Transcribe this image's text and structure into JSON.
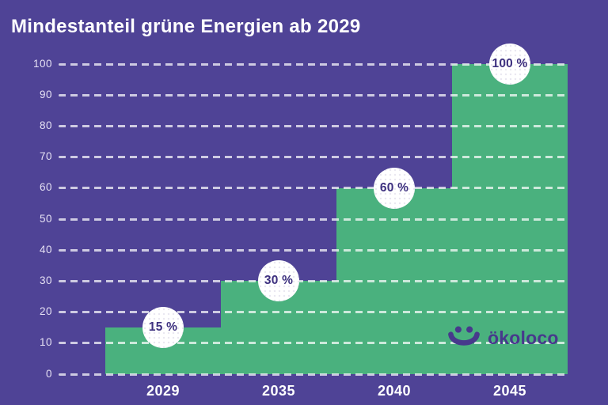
{
  "header": {
    "title": "Mindestanteil grüne Energien ab 2029"
  },
  "chart_data": {
    "type": "bar",
    "title": "Mindestanteil grüne Energien ab 2029",
    "categories": [
      "2029",
      "2035",
      "2040",
      "2045"
    ],
    "values": [
      15,
      30,
      60,
      100
    ],
    "value_labels": [
      "15 %",
      "30 %",
      "60 %",
      "100 %"
    ],
    "xlabel": "",
    "ylabel": "",
    "ylim": [
      0,
      100
    ],
    "yticks": [
      0,
      10,
      20,
      30,
      40,
      50,
      60,
      70,
      80,
      90,
      100
    ],
    "grid": "horizontal-dashed",
    "legend": "none",
    "style": "contiguous step bars with circular value badges centered on each bar top edge"
  },
  "logo": {
    "text": "ökoloco",
    "icon": "smiley-face-icon"
  },
  "colors": {
    "background": "#4f4396",
    "bar": "#4ab17e",
    "gridline": "#ffffff",
    "badge_background": "#ffffff",
    "badge_text": "#3d307f",
    "tick_text": "#e6e1f4",
    "title_text": "#ffffff",
    "logo_color": "#47398c"
  }
}
